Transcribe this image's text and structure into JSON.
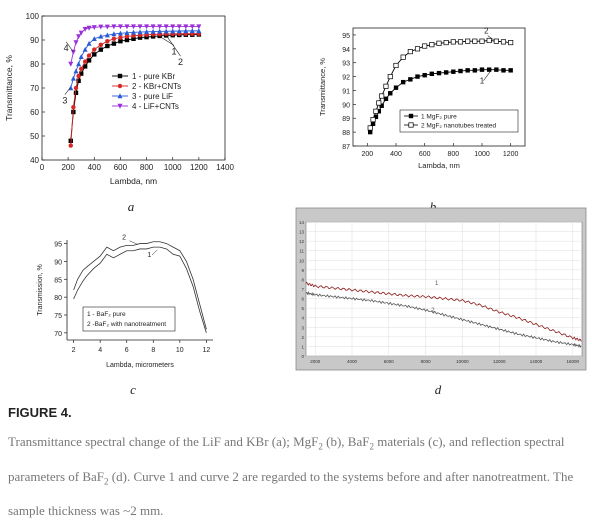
{
  "figure": {
    "title": "FIGURE 4.",
    "caption_parts": {
      "p1": "Transmittance spectral change of the LiF and KBr (a); MgF",
      "s1": "2",
      "p2": " (b), BaF",
      "s2": "2",
      "p3": " materials (c), and reflection spectral parameters of BaF",
      "s3": "2",
      "p4": " (d). Curve 1 and curve 2 are regarded to the systems before and after nanotreatment. The sample thickness was ~2 mm."
    },
    "panel_labels": [
      "a",
      "b",
      "c",
      "d"
    ]
  },
  "chart_data": [
    {
      "type": "line",
      "panel": "a",
      "xlabel": "Lambda, nm",
      "ylabel": "Transmittance, %",
      "xlim": [
        0,
        1400
      ],
      "ylim": [
        40,
        100
      ],
      "xticks": [
        "0",
        "200",
        "400",
        "600",
        "800",
        "1000",
        "1200",
        "1400"
      ],
      "yticks": [
        "40",
        "50",
        "60",
        "70",
        "80",
        "90",
        "100"
      ],
      "legend": [
        "1 - pure KBr",
        "2 - KBr+CNTs",
        "3 - pure LiF",
        "4 - LiF+CNTs"
      ],
      "annotations": [
        "1",
        "2",
        "3",
        "4"
      ],
      "series": [
        {
          "name": "1 - pure KBr",
          "color": "#000000",
          "marker": "square",
          "x": [
            220,
            240,
            260,
            280,
            300,
            330,
            360,
            400,
            450,
            500,
            550,
            600,
            650,
            700,
            750,
            800,
            850,
            900,
            950,
            1000,
            1050,
            1100,
            1150,
            1200
          ],
          "y": [
            48,
            60,
            68,
            73,
            76,
            79,
            81.5,
            84,
            86,
            87.5,
            88.5,
            89.5,
            90,
            90.5,
            91,
            91.2,
            91.5,
            91.7,
            91.9,
            92,
            92.1,
            92.2,
            92.2,
            92.3
          ]
        },
        {
          "name": "2 - KBr+CNTs",
          "color": "#d62728",
          "marker": "circle",
          "x": [
            220,
            240,
            260,
            280,
            300,
            330,
            360,
            400,
            450,
            500,
            550,
            600,
            650,
            700,
            750,
            800,
            850,
            900,
            950,
            1000,
            1050,
            1100,
            1150,
            1200
          ],
          "y": [
            46,
            62,
            70,
            75,
            78,
            81,
            83.5,
            86,
            88,
            89.5,
            90.5,
            91,
            91.5,
            91.8,
            92,
            92.2,
            92.3,
            92.4,
            92.5,
            92.5,
            92.6,
            92.6,
            92.6,
            92.6
          ]
        },
        {
          "name": "3 - pure LiF",
          "color": "#2b5bd7",
          "marker": "triangle",
          "x": [
            220,
            240,
            260,
            280,
            300,
            330,
            360,
            400,
            450,
            500,
            550,
            600,
            650,
            700,
            750,
            800,
            850,
            900,
            950,
            1000,
            1050,
            1100,
            1150,
            1200
          ],
          "y": [
            70,
            74,
            77,
            80,
            83,
            86,
            88.5,
            90.5,
            91.5,
            92,
            92.5,
            92.8,
            93,
            93.2,
            93.3,
            93.4,
            93.5,
            93.6,
            93.6,
            93.7,
            93.7,
            93.8,
            93.8,
            93.8
          ]
        },
        {
          "name": "4 - LiF+CNTs",
          "color": "#9b30d9",
          "marker": "triangle-down",
          "x": [
            220,
            240,
            260,
            280,
            300,
            330,
            360,
            400,
            450,
            500,
            550,
            600,
            650,
            700,
            750,
            800,
            850,
            900,
            950,
            1000,
            1050,
            1100,
            1150,
            1200
          ],
          "y": [
            80,
            85,
            89,
            91.5,
            93,
            94.5,
            95,
            95.3,
            95.5,
            95.5,
            95.6,
            95.6,
            95.6,
            95.6,
            95.6,
            95.6,
            95.6,
            95.6,
            95.6,
            95.6,
            95.6,
            95.6,
            95.6,
            95.6
          ]
        }
      ]
    },
    {
      "type": "line",
      "panel": "b",
      "xlabel": "Lambda, nm",
      "ylabel": "Transmittance, %",
      "xlim": [
        100,
        1300
      ],
      "ylim": [
        87,
        95.5
      ],
      "xticks": [
        "200",
        "400",
        "600",
        "800",
        "1000",
        "1200"
      ],
      "yticks": [
        "87",
        "88",
        "89",
        "90",
        "91",
        "92",
        "93",
        "94",
        "95"
      ],
      "legend": [
        "1 MgF₂ pure",
        "2 MgF₂ nanotubes treated"
      ],
      "annotations": [
        "1",
        "2"
      ],
      "series": [
        {
          "name": "1 MgF₂ pure",
          "color": "#000000",
          "marker": "square-filled",
          "x": [
            220,
            240,
            260,
            280,
            300,
            330,
            360,
            400,
            450,
            500,
            550,
            600,
            650,
            700,
            750,
            800,
            850,
            900,
            950,
            1000,
            1050,
            1100,
            1150,
            1200
          ],
          "y": [
            88,
            88.6,
            89.1,
            89.5,
            89.9,
            90.4,
            90.8,
            91.2,
            91.6,
            91.8,
            92,
            92.1,
            92.2,
            92.25,
            92.3,
            92.35,
            92.4,
            92.45,
            92.45,
            92.5,
            92.5,
            92.5,
            92.45,
            92.45
          ]
        },
        {
          "name": "2 MgF₂ nanotubes treated",
          "color": "#000000",
          "marker": "square-open",
          "x": [
            220,
            240,
            260,
            280,
            300,
            330,
            360,
            400,
            450,
            500,
            550,
            600,
            650,
            700,
            750,
            800,
            850,
            900,
            950,
            1000,
            1050,
            1100,
            1150,
            1200
          ],
          "y": [
            88.3,
            88.9,
            89.5,
            90.1,
            90.6,
            91.3,
            92,
            92.8,
            93.4,
            93.8,
            94,
            94.2,
            94.3,
            94.4,
            94.45,
            94.5,
            94.5,
            94.55,
            94.55,
            94.55,
            94.6,
            94.55,
            94.5,
            94.45
          ]
        }
      ]
    },
    {
      "type": "line",
      "panel": "c",
      "xlabel": "Lambda, micrometers",
      "ylabel": "Transmission, %",
      "xlim": [
        1.5,
        12.5
      ],
      "ylim": [
        68,
        96
      ],
      "xticks": [
        "2",
        "4",
        "6",
        "8",
        "10",
        "12"
      ],
      "yticks": [
        "70",
        "75",
        "80",
        "85",
        "90",
        "95"
      ],
      "legend": [
        "1 - BaF₂ pure",
        "2 -BaF₂ with nanotreatment"
      ],
      "annotations": [
        "1",
        "2"
      ],
      "series": [
        {
          "name": "1 - BaF₂ pure",
          "color": "#333333",
          "x": [
            2,
            2.3,
            2.7,
            3,
            3.5,
            4,
            4.5,
            5,
            5.5,
            6,
            6.5,
            7,
            7.5,
            8,
            8.5,
            9,
            9.5,
            10,
            10.5,
            11,
            11.5,
            12
          ],
          "y": [
            79.5,
            82,
            84.5,
            86,
            88,
            89.5,
            92,
            91,
            92,
            93,
            93,
            93.5,
            93.5,
            94,
            94,
            93.5,
            92,
            91.5,
            88,
            83,
            76,
            70
          ]
        },
        {
          "name": "2 -BaF₂ with nanotreatment",
          "color": "#333333",
          "x": [
            2,
            2.3,
            2.7,
            3,
            3.5,
            4,
            4.5,
            5,
            5.5,
            6,
            6.5,
            7,
            7.5,
            8,
            8.5,
            9,
            9.5,
            10,
            10.5,
            11,
            11.5,
            12
          ],
          "y": [
            82,
            85,
            87.5,
            88.5,
            90,
            91.5,
            94,
            93,
            94,
            94.5,
            94.5,
            95,
            95,
            95.5,
            95.5,
            95,
            94,
            93,
            90,
            85,
            78,
            71
          ]
        }
      ]
    },
    {
      "type": "line",
      "panel": "d",
      "xlabel": "",
      "ylabel": "",
      "xlim": [
        1500,
        16500
      ],
      "ylim": [
        0,
        14
      ],
      "xticks": [
        "2000",
        "4000",
        "6000",
        "8000",
        "10000",
        "12000",
        "14000",
        "16000"
      ],
      "yticks": [
        "0",
        "1",
        "2",
        "3",
        "4",
        "5",
        "6",
        "7",
        "8",
        "9",
        "10",
        "11",
        "12",
        "13",
        "14"
      ],
      "annotations": [
        "1",
        "2"
      ],
      "series": [
        {
          "name": "",
          "color": "#8b1a1a",
          "x": [
            1500,
            2000,
            3000,
            4000,
            5000,
            6000,
            7000,
            8000,
            9000,
            10000,
            11000,
            12000,
            13000,
            14000,
            15000,
            16000,
            16500
          ],
          "y": [
            7.6,
            7.3,
            7.1,
            6.9,
            6.7,
            6.5,
            6.3,
            6.2,
            6.0,
            5.8,
            5.3,
            4.6,
            4.0,
            3.3,
            2.6,
            1.9,
            1.6
          ]
        },
        {
          "name": "",
          "color": "#555555",
          "x": [
            1500,
            2000,
            3000,
            4000,
            5000,
            6000,
            7000,
            8000,
            9000,
            10000,
            11000,
            12000,
            13000,
            14000,
            15000,
            16000,
            16500
          ],
          "y": [
            6.6,
            6.4,
            6.2,
            6.0,
            5.8,
            5.5,
            5.2,
            4.8,
            4.3,
            3.8,
            3.3,
            2.8,
            2.3,
            1.9,
            1.5,
            1.2,
            1.0
          ]
        }
      ]
    }
  ]
}
